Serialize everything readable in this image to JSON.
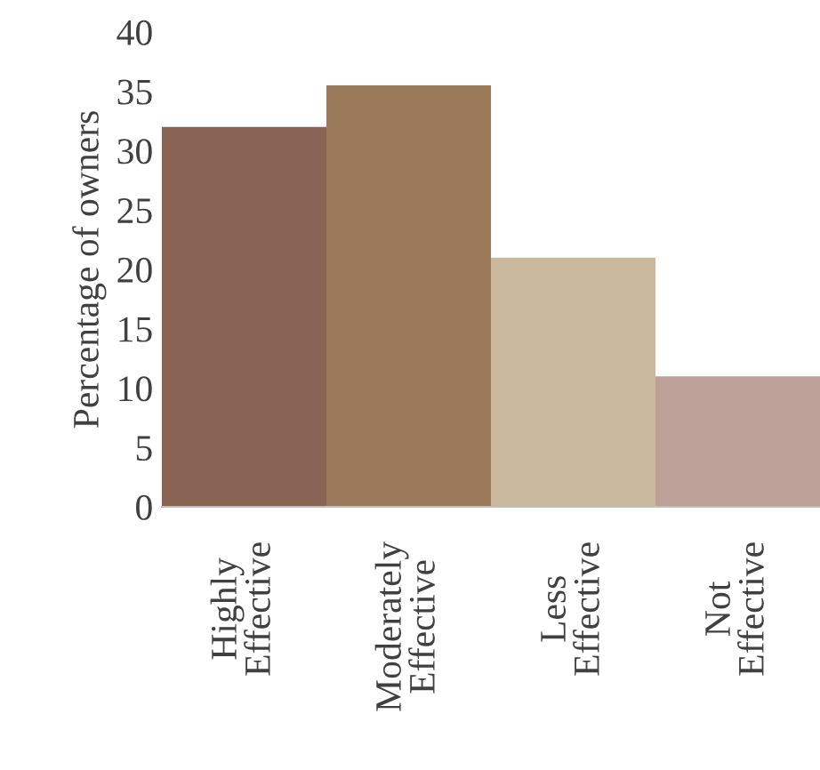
{
  "chart_data": {
    "type": "bar",
    "ylabel": "Percentage of owners",
    "categories": [
      "Highly Effective",
      "Moderately Effective",
      "Less Effective",
      "Not Effective"
    ],
    "values": [
      32,
      35.5,
      21,
      11
    ],
    "colors": [
      "#896455",
      "#9a7a5a",
      "#c9b89c",
      "#bda198"
    ],
    "ylim": [
      0,
      40
    ],
    "yticks": [
      0,
      5,
      10,
      15,
      20,
      25,
      30,
      35,
      40
    ],
    "grid": false,
    "legend": false
  }
}
